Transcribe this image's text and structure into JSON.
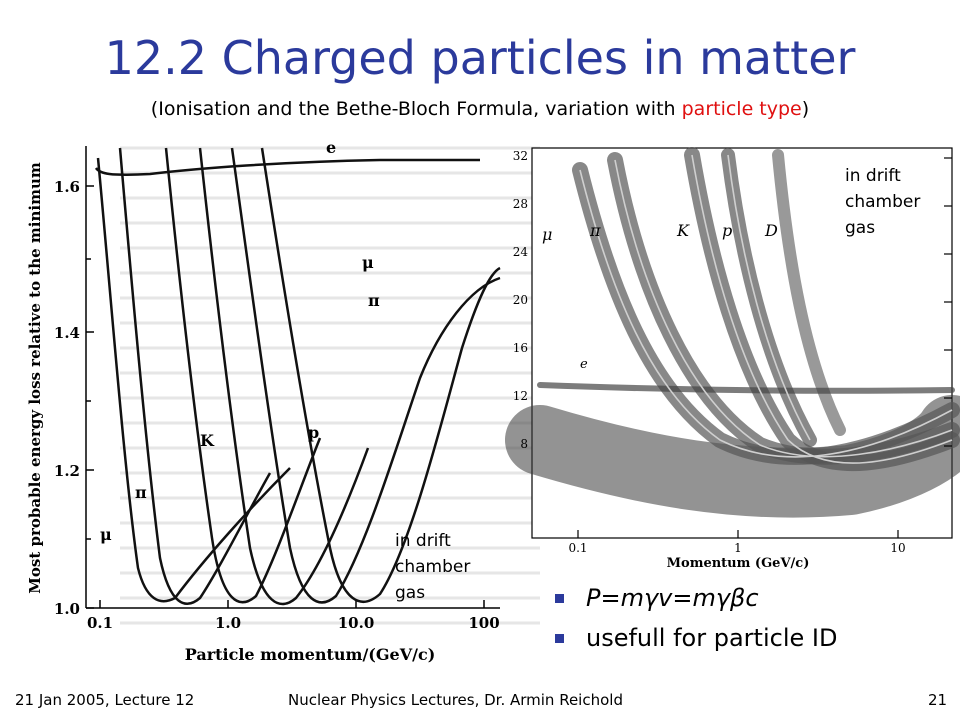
{
  "slide": {
    "title": "12.2 Charged particles in matter",
    "subtitle_pre": "(Ionisation and the Bethe-Bloch Formula, variation with ",
    "subtitle_highlight": "particle type",
    "subtitle_post": ")",
    "accent_color": "#2b3a9c",
    "highlight_color": "#e01010"
  },
  "left_plot": {
    "ylabel": "Most probable energy loss relative to the minimum",
    "xlabel": "Particle momentum/(GeV/c)",
    "y_ticks": [
      "1.0",
      "1.2",
      "1.4",
      "1.6"
    ],
    "x_ticks": [
      "0.1",
      "1.0",
      "10.0",
      "100"
    ],
    "curve_labels": [
      "e",
      "μ",
      "π",
      "K",
      "p",
      "π",
      "μ"
    ],
    "annotation_lines": [
      "in drift",
      "chamber",
      "gas"
    ]
  },
  "right_plot": {
    "xlabel": "Momentum (GeV/c)",
    "y_ticks": [
      "32",
      "28",
      "24",
      "20",
      "16",
      "12",
      "8"
    ],
    "x_ticks": [
      "0.1",
      "1",
      "10"
    ],
    "band_labels": [
      "μ",
      "π",
      "K",
      "p",
      "D",
      "e"
    ],
    "annotation_lines": [
      "in drift",
      "chamber",
      "gas"
    ]
  },
  "bullets": [
    {
      "text": "P=mγv=mγβc",
      "style": "formula"
    },
    {
      "text": "usefull for particle ID",
      "style": "normal"
    }
  ],
  "footer": {
    "left": "21 Jan 2005, Lecture 12",
    "center": "Nuclear Physics Lectures, Dr. Armin Reichold",
    "page": "21"
  }
}
